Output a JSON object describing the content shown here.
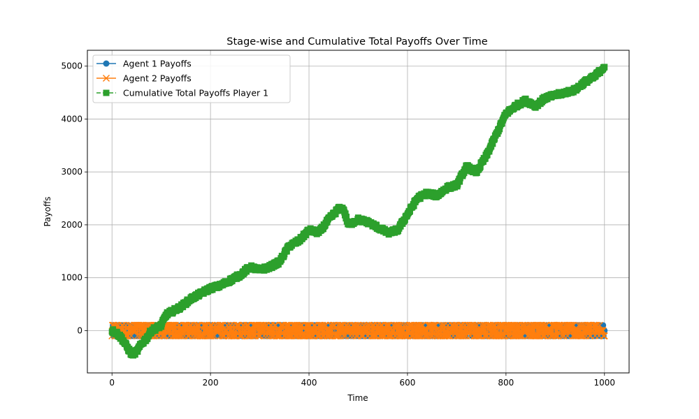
{
  "chart_data": {
    "type": "line",
    "title": "Stage-wise and Cumulative Total Payoffs Over Time",
    "xlabel": "Time",
    "ylabel": "Payoffs",
    "xlim": [
      -50,
      1050
    ],
    "ylim": [
      -800,
      5300
    ],
    "xticks": [
      0,
      200,
      400,
      600,
      800,
      1000
    ],
    "yticks": [
      0,
      1000,
      2000,
      3000,
      4000,
      5000
    ],
    "grid": true,
    "legend_position": "upper-left",
    "colors": {
      "agent1": "#1f77b4",
      "agent2": "#ff7f0e",
      "cumulative": "#2ca02c",
      "grid": "#b0b0b0"
    },
    "stage_payoff_values": [
      -100,
      0,
      100
    ],
    "n_points": 1001,
    "series": [
      {
        "name": "Agent 1 Payoffs",
        "marker": "circle",
        "line": "solid",
        "description_values": "stage-wise payoff alternating among -100, 0 and 100 for each time step from 0 to 1000"
      },
      {
        "name": "Agent 2 Payoffs",
        "marker": "x",
        "line": "solid",
        "description_values": "stage-wise payoff alternating among -100, 0 and 100 for each time step from 0 to 1000"
      },
      {
        "name": "Cumulative Total Payoffs Player 1",
        "marker": "square",
        "line": "dashed",
        "keypoints_x": [
          0,
          10,
          20,
          30,
          40,
          50,
          60,
          70,
          80,
          90,
          100,
          110,
          120,
          140,
          160,
          180,
          200,
          220,
          240,
          260,
          280,
          300,
          320,
          340,
          360,
          380,
          400,
          420,
          440,
          460,
          470,
          480,
          500,
          520,
          540,
          560,
          580,
          600,
          620,
          640,
          660,
          680,
          700,
          720,
          740,
          760,
          780,
          800,
          820,
          840,
          860,
          880,
          900,
          920,
          940,
          960,
          980,
          1000
        ],
        "keypoints_y": [
          0,
          -50,
          -150,
          -300,
          -450,
          -400,
          -250,
          -150,
          0,
          50,
          100,
          300,
          350,
          450,
          600,
          700,
          800,
          850,
          950,
          1050,
          1200,
          1150,
          1200,
          1300,
          1600,
          1700,
          1900,
          1850,
          2100,
          2300,
          2300,
          2000,
          2100,
          2050,
          1950,
          1850,
          1900,
          2200,
          2500,
          2600,
          2550,
          2700,
          2750,
          3100,
          3000,
          3300,
          3700,
          4100,
          4250,
          4350,
          4250,
          4400,
          4450,
          4500,
          4550,
          4700,
          4800,
          5000
        ]
      }
    ]
  }
}
